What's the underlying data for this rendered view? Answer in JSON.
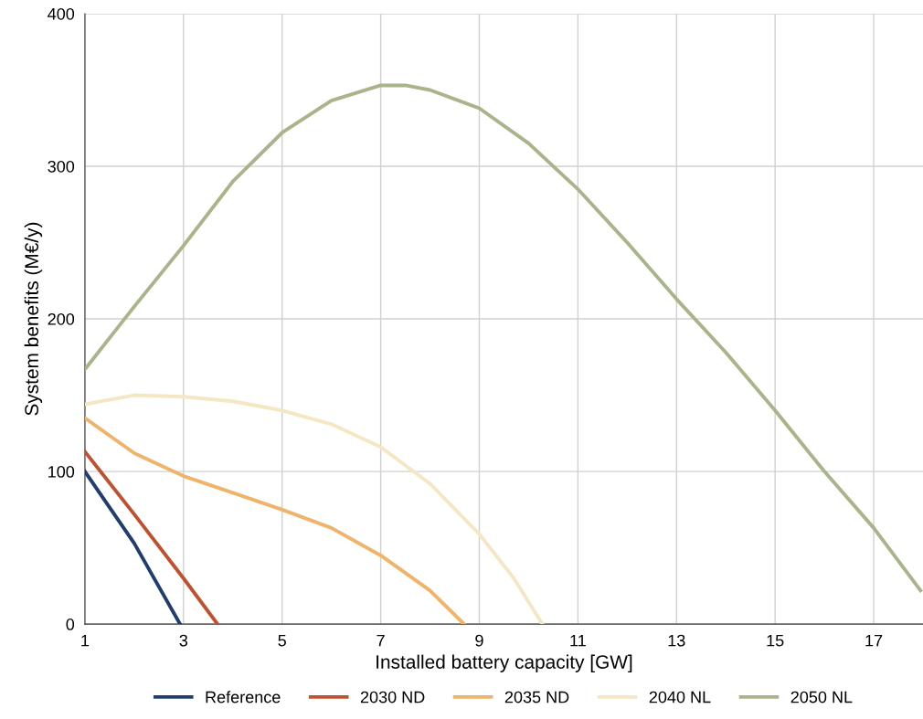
{
  "chart_data": {
    "type": "line",
    "xlabel": "Installed battery capacity [GW]",
    "ylabel": "System benefits (M€/y)",
    "xlim": [
      1,
      18
    ],
    "xticks": [
      1,
      3,
      5,
      7,
      9,
      11,
      13,
      15,
      17
    ],
    "ylim": [
      0,
      400
    ],
    "yticks": [
      0,
      100,
      200,
      300,
      400
    ],
    "grid": true,
    "legend": "bottom",
    "marker": "none",
    "line_style": "solid",
    "series": [
      {
        "name": "Reference",
        "color": "#1f3d6e",
        "x": [
          1,
          2,
          2.93
        ],
        "values": [
          100,
          53,
          0
        ]
      },
      {
        "name": "2030 ND",
        "color": "#c0502f",
        "x": [
          1,
          2,
          3,
          3.69
        ],
        "values": [
          113,
          72,
          30,
          0
        ]
      },
      {
        "name": "2035 ND",
        "color": "#f0b36a",
        "x": [
          1,
          2,
          3,
          4,
          5,
          6,
          7,
          8,
          8.69
        ],
        "values": [
          135,
          112,
          97,
          86,
          75,
          63,
          45,
          22,
          0
        ]
      },
      {
        "name": "2040 NL",
        "color": "#f5e6c4",
        "x": [
          1,
          2,
          3,
          4,
          5,
          6,
          7,
          8,
          9,
          9.7,
          10.28
        ],
        "values": [
          144,
          150,
          149,
          146,
          140,
          131,
          116,
          92,
          59,
          30,
          0
        ]
      },
      {
        "name": "2050 NL",
        "color": "#a9b48a",
        "x": [
          1,
          2,
          3,
          4,
          5,
          6,
          7,
          7.5,
          8,
          9,
          10,
          11,
          12,
          13,
          14,
          15,
          16,
          17,
          17.95
        ],
        "values": [
          167,
          208,
          248,
          290,
          322,
          343,
          353,
          353,
          350,
          338,
          315,
          285,
          250,
          213,
          178,
          140,
          100,
          63,
          22
        ]
      }
    ]
  }
}
